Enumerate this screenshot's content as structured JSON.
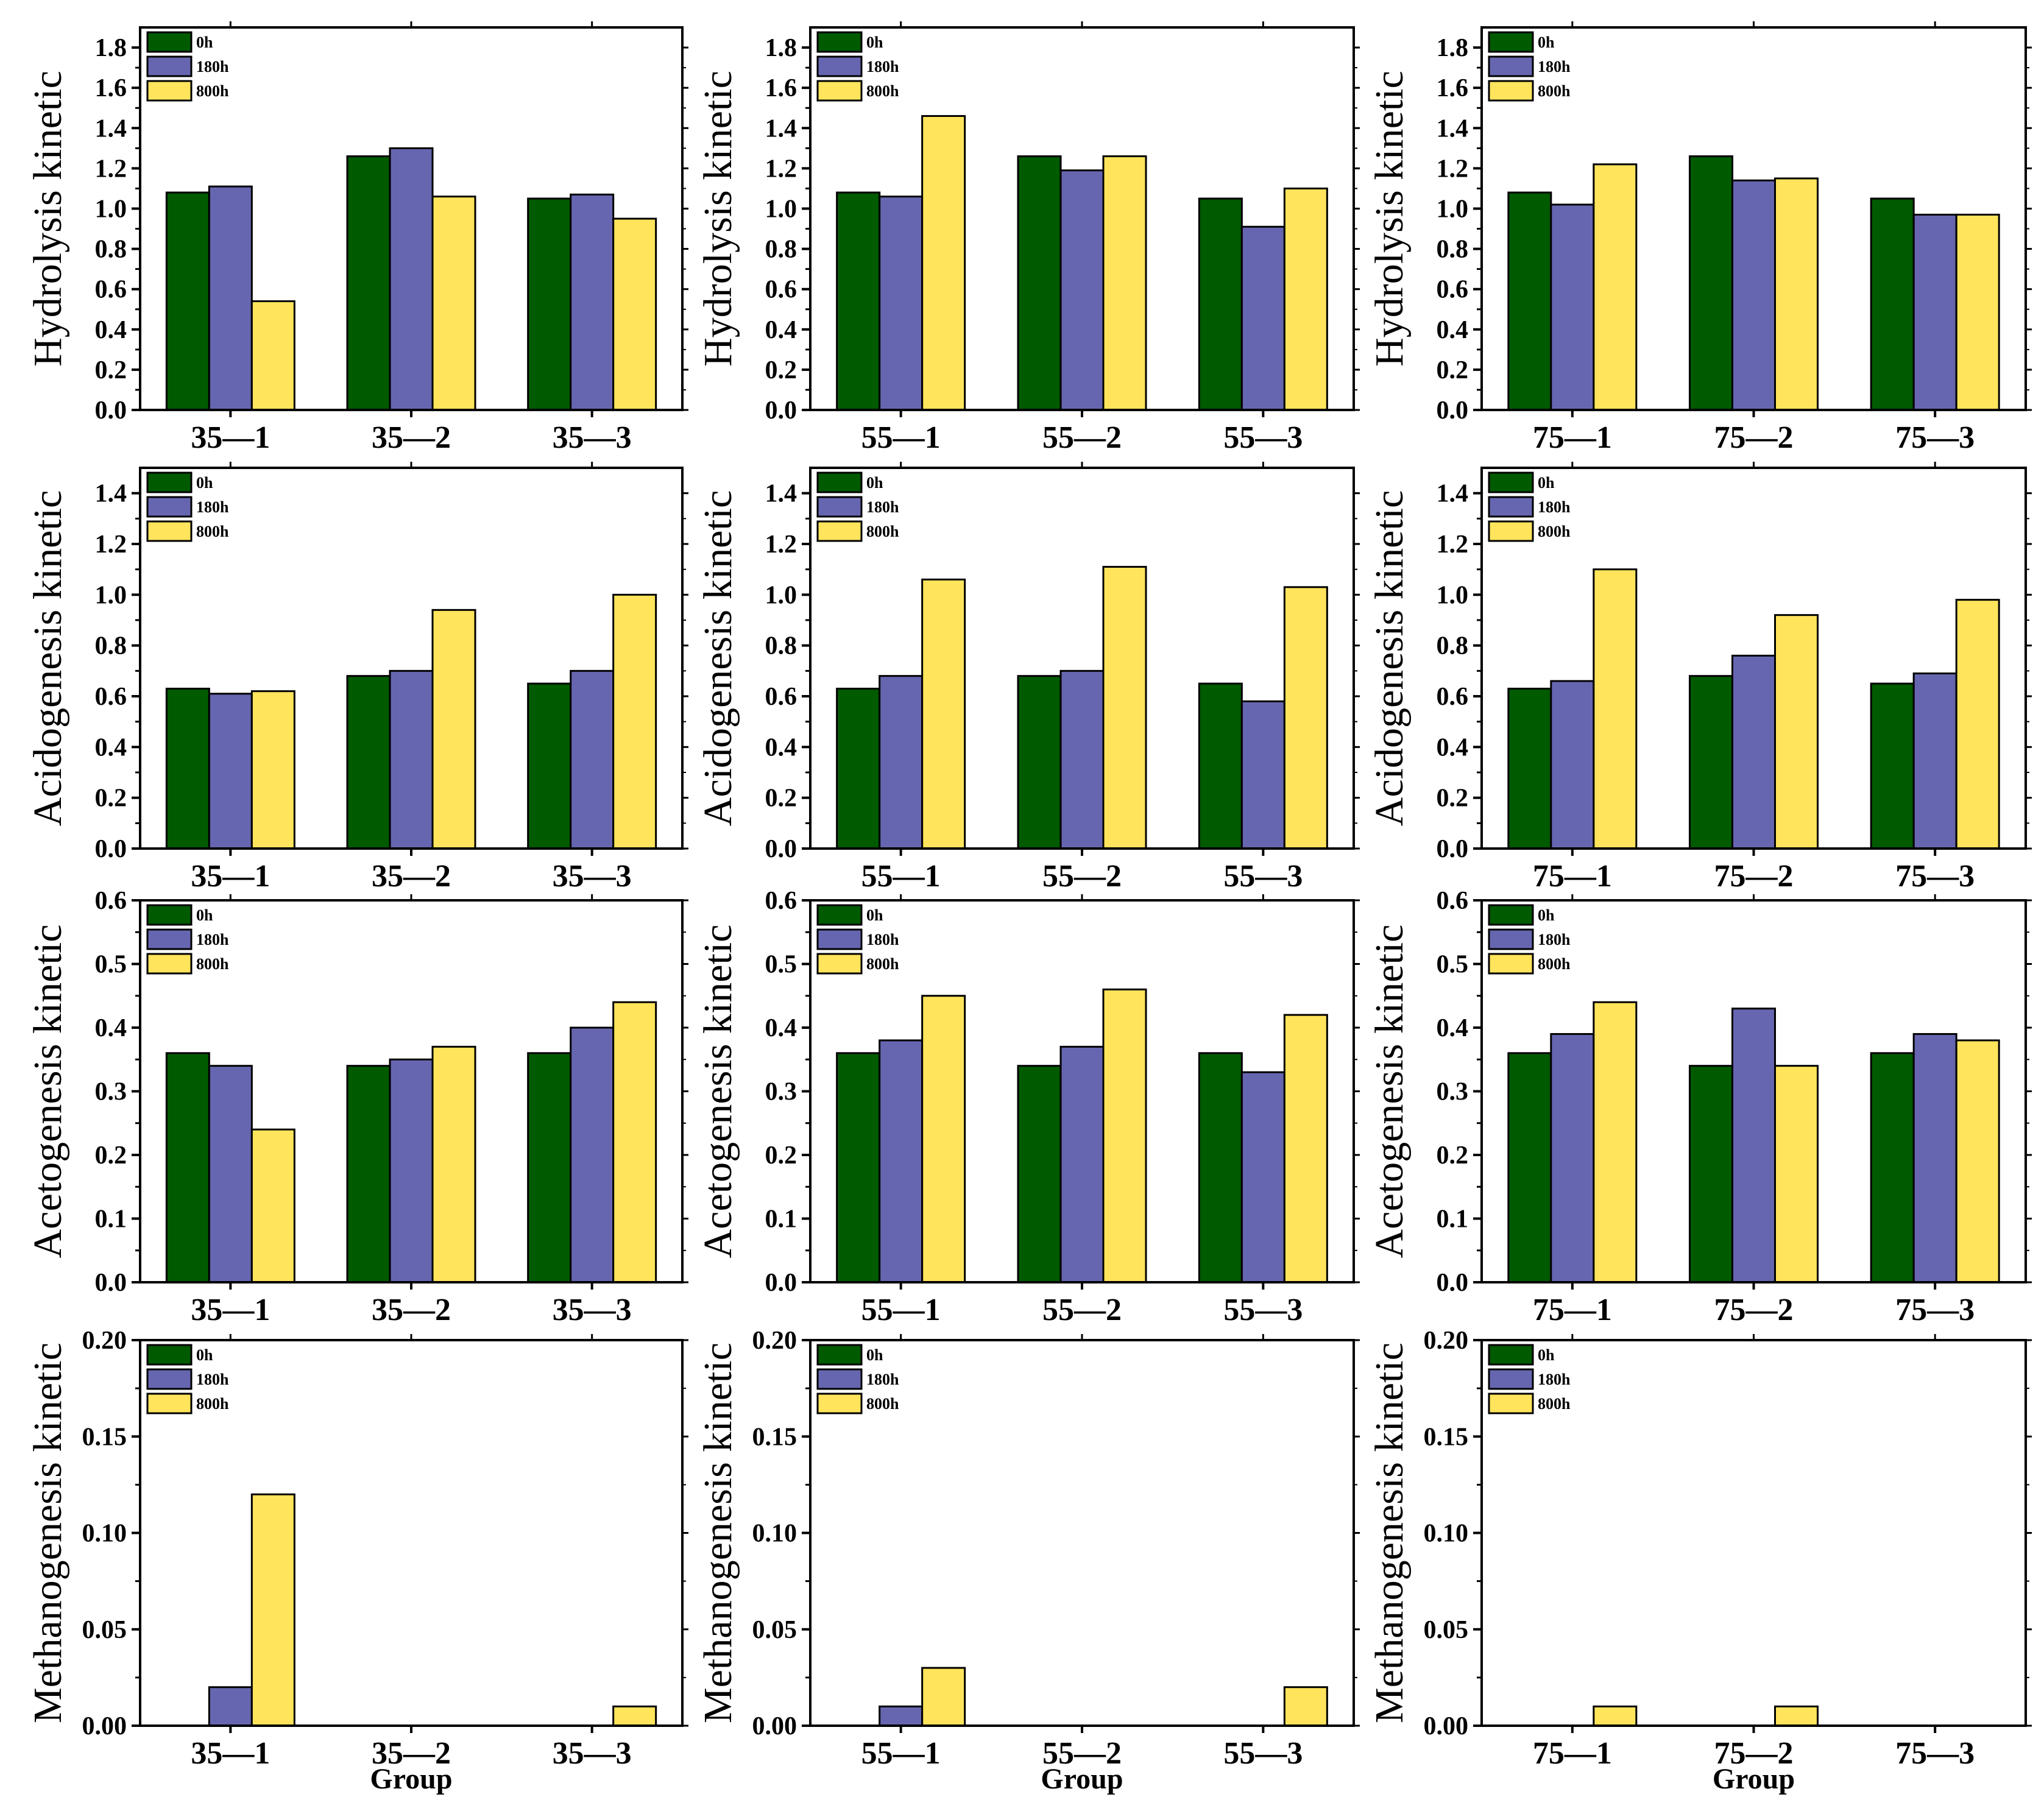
{
  "figure": {
    "series_names": [
      "0h",
      "180h",
      "800h"
    ],
    "series_colors": [
      "#005a00",
      "#6666b0",
      "#ffe45c"
    ]
  },
  "chart_data": [
    {
      "type": "bar",
      "row": 0,
      "col": 0,
      "ylabel": "Hydrolysis kinetic",
      "xlabel": "",
      "ylim": [
        0,
        1.9
      ],
      "yticks": [
        0.0,
        0.2,
        0.4,
        0.6,
        0.8,
        1.0,
        1.2,
        1.4,
        1.6,
        1.8
      ],
      "decimals": 1,
      "categories": [
        "35—1",
        "35—2",
        "35—3"
      ],
      "series": [
        {
          "name": "0h",
          "values": [
            1.08,
            1.26,
            1.05
          ]
        },
        {
          "name": "180h",
          "values": [
            1.11,
            1.3,
            1.07
          ]
        },
        {
          "name": "800h",
          "values": [
            0.54,
            1.06,
            0.95
          ]
        }
      ]
    },
    {
      "type": "bar",
      "row": 0,
      "col": 1,
      "ylabel": "Hydrolysis kinetic",
      "xlabel": "",
      "ylim": [
        0,
        1.9
      ],
      "yticks": [
        0.0,
        0.2,
        0.4,
        0.6,
        0.8,
        1.0,
        1.2,
        1.4,
        1.6,
        1.8
      ],
      "decimals": 1,
      "categories": [
        "55—1",
        "55—2",
        "55—3"
      ],
      "series": [
        {
          "name": "0h",
          "values": [
            1.08,
            1.26,
            1.05
          ]
        },
        {
          "name": "180h",
          "values": [
            1.06,
            1.19,
            0.91
          ]
        },
        {
          "name": "800h",
          "values": [
            1.46,
            1.26,
            1.1
          ]
        }
      ]
    },
    {
      "type": "bar",
      "row": 0,
      "col": 2,
      "ylabel": "Hydrolysis kinetic",
      "xlabel": "",
      "ylim": [
        0,
        1.9
      ],
      "yticks": [
        0.0,
        0.2,
        0.4,
        0.6,
        0.8,
        1.0,
        1.2,
        1.4,
        1.6,
        1.8
      ],
      "decimals": 1,
      "categories": [
        "75—1",
        "75—2",
        "75—3"
      ],
      "series": [
        {
          "name": "0h",
          "values": [
            1.08,
            1.26,
            1.05
          ]
        },
        {
          "name": "180h",
          "values": [
            1.02,
            1.14,
            0.97
          ]
        },
        {
          "name": "800h",
          "values": [
            1.22,
            1.15,
            0.97
          ]
        }
      ]
    },
    {
      "type": "bar",
      "row": 1,
      "col": 0,
      "ylabel": "Acidogenesis kinetic",
      "xlabel": "",
      "ylim": [
        0,
        1.5
      ],
      "yticks": [
        0.0,
        0.2,
        0.4,
        0.6,
        0.8,
        1.0,
        1.2,
        1.4
      ],
      "decimals": 1,
      "categories": [
        "35—1",
        "35—2",
        "35—3"
      ],
      "series": [
        {
          "name": "0h",
          "values": [
            0.63,
            0.68,
            0.65
          ]
        },
        {
          "name": "180h",
          "values": [
            0.61,
            0.7,
            0.7
          ]
        },
        {
          "name": "800h",
          "values": [
            0.62,
            0.94,
            1.0
          ]
        }
      ]
    },
    {
      "type": "bar",
      "row": 1,
      "col": 1,
      "ylabel": "Acidogenesis kinetic",
      "xlabel": "",
      "ylim": [
        0,
        1.5
      ],
      "yticks": [
        0.0,
        0.2,
        0.4,
        0.6,
        0.8,
        1.0,
        1.2,
        1.4
      ],
      "decimals": 1,
      "categories": [
        "55—1",
        "55—2",
        "55—3"
      ],
      "series": [
        {
          "name": "0h",
          "values": [
            0.63,
            0.68,
            0.65
          ]
        },
        {
          "name": "180h",
          "values": [
            0.68,
            0.7,
            0.58
          ]
        },
        {
          "name": "800h",
          "values": [
            1.06,
            1.11,
            1.03
          ]
        }
      ]
    },
    {
      "type": "bar",
      "row": 1,
      "col": 2,
      "ylabel": "Acidogenesis kinetic",
      "xlabel": "",
      "ylim": [
        0,
        1.5
      ],
      "yticks": [
        0.0,
        0.2,
        0.4,
        0.6,
        0.8,
        1.0,
        1.2,
        1.4
      ],
      "decimals": 1,
      "categories": [
        "75—1",
        "75—2",
        "75—3"
      ],
      "series": [
        {
          "name": "0h",
          "values": [
            0.63,
            0.68,
            0.65
          ]
        },
        {
          "name": "180h",
          "values": [
            0.66,
            0.76,
            0.69
          ]
        },
        {
          "name": "800h",
          "values": [
            1.1,
            0.92,
            0.98
          ]
        }
      ]
    },
    {
      "type": "bar",
      "row": 2,
      "col": 0,
      "ylabel": "Acetogenesis kinetic",
      "xlabel": "",
      "ylim": [
        0,
        0.6
      ],
      "yticks": [
        0.0,
        0.1,
        0.2,
        0.3,
        0.4,
        0.5,
        0.6
      ],
      "decimals": 1,
      "categories": [
        "35—1",
        "35—2",
        "35—3"
      ],
      "series": [
        {
          "name": "0h",
          "values": [
            0.36,
            0.34,
            0.36
          ]
        },
        {
          "name": "180h",
          "values": [
            0.34,
            0.35,
            0.4
          ]
        },
        {
          "name": "800h",
          "values": [
            0.24,
            0.37,
            0.44
          ]
        }
      ]
    },
    {
      "type": "bar",
      "row": 2,
      "col": 1,
      "ylabel": "Acetogenesis kinetic",
      "xlabel": "",
      "ylim": [
        0,
        0.6
      ],
      "yticks": [
        0.0,
        0.1,
        0.2,
        0.3,
        0.4,
        0.5,
        0.6
      ],
      "decimals": 1,
      "categories": [
        "55—1",
        "55—2",
        "55—3"
      ],
      "series": [
        {
          "name": "0h",
          "values": [
            0.36,
            0.34,
            0.36
          ]
        },
        {
          "name": "180h",
          "values": [
            0.38,
            0.37,
            0.33
          ]
        },
        {
          "name": "800h",
          "values": [
            0.45,
            0.46,
            0.42
          ]
        }
      ]
    },
    {
      "type": "bar",
      "row": 2,
      "col": 2,
      "ylabel": "Acetogenesis kinetic",
      "xlabel": "",
      "ylim": [
        0,
        0.6
      ],
      "yticks": [
        0.0,
        0.1,
        0.2,
        0.3,
        0.4,
        0.5,
        0.6
      ],
      "decimals": 1,
      "categories": [
        "75—1",
        "75—2",
        "75—3"
      ],
      "series": [
        {
          "name": "0h",
          "values": [
            0.36,
            0.34,
            0.36
          ]
        },
        {
          "name": "180h",
          "values": [
            0.39,
            0.43,
            0.39
          ]
        },
        {
          "name": "800h",
          "values": [
            0.44,
            0.34,
            0.38
          ]
        }
      ]
    },
    {
      "type": "bar",
      "row": 3,
      "col": 0,
      "ylabel": "Methanogenesis kinetic",
      "xlabel": "Group",
      "ylim": [
        0,
        0.2
      ],
      "yticks": [
        0.0,
        0.05,
        0.1,
        0.15,
        0.2
      ],
      "decimals": 2,
      "categories": [
        "35—1",
        "35—2",
        "35—3"
      ],
      "series": [
        {
          "name": "0h",
          "values": [
            0,
            0,
            0
          ]
        },
        {
          "name": "180h",
          "values": [
            0.02,
            0,
            0
          ]
        },
        {
          "name": "800h",
          "values": [
            0.12,
            0,
            0.01
          ]
        }
      ]
    },
    {
      "type": "bar",
      "row": 3,
      "col": 1,
      "ylabel": "Methanogenesis kinetic",
      "xlabel": "Group",
      "ylim": [
        0,
        0.2
      ],
      "yticks": [
        0.0,
        0.05,
        0.1,
        0.15,
        0.2
      ],
      "decimals": 2,
      "categories": [
        "55—1",
        "55—2",
        "55—3"
      ],
      "series": [
        {
          "name": "0h",
          "values": [
            0,
            0,
            0
          ]
        },
        {
          "name": "180h",
          "values": [
            0.01,
            0,
            0
          ]
        },
        {
          "name": "800h",
          "values": [
            0.03,
            0,
            0.02
          ]
        }
      ]
    },
    {
      "type": "bar",
      "row": 3,
      "col": 2,
      "ylabel": "Methanogenesis kinetic",
      "xlabel": "Group",
      "ylim": [
        0,
        0.2
      ],
      "yticks": [
        0.0,
        0.05,
        0.1,
        0.15,
        0.2
      ],
      "decimals": 2,
      "categories": [
        "75—1",
        "75—2",
        "75—3"
      ],
      "series": [
        {
          "name": "0h",
          "values": [
            0,
            0,
            0
          ]
        },
        {
          "name": "180h",
          "values": [
            0,
            0,
            0
          ]
        },
        {
          "name": "800h",
          "values": [
            0.01,
            0.01,
            0
          ]
        }
      ]
    }
  ]
}
